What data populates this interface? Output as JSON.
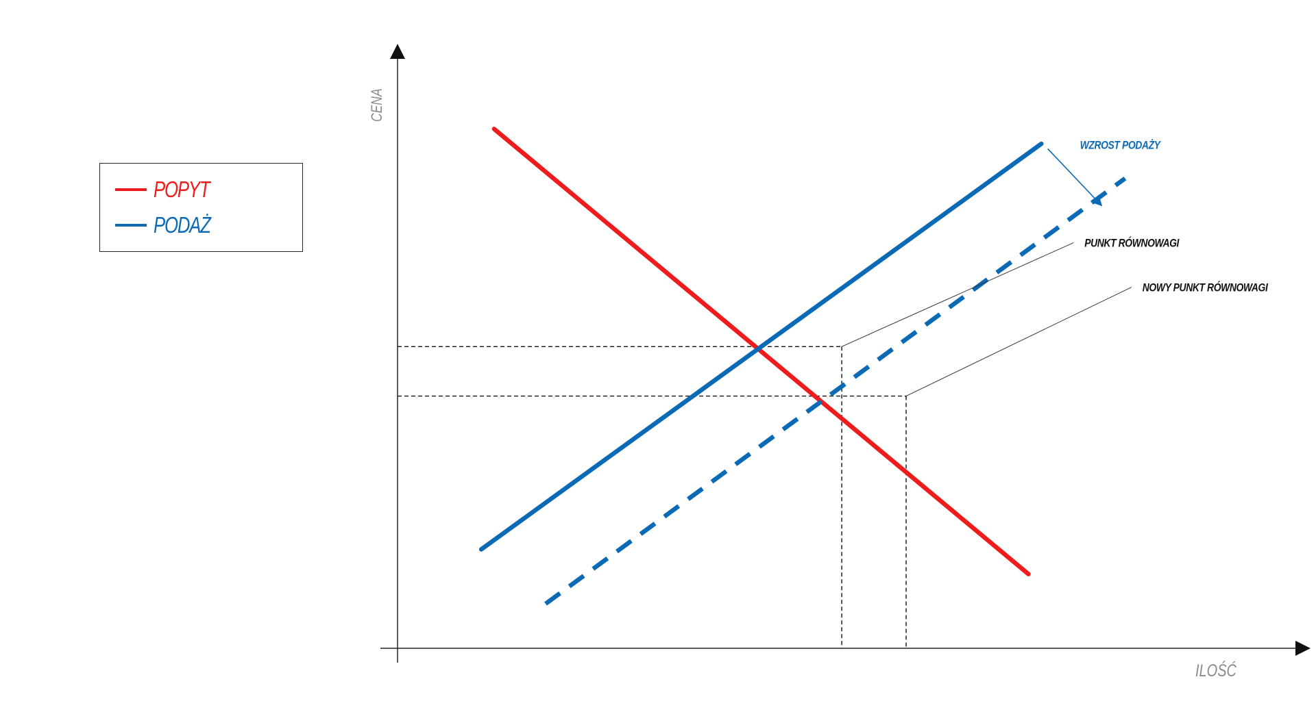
{
  "chart_data": {
    "type": "line",
    "title": "",
    "xlabel": "ILOŚĆ",
    "ylabel": "CENA",
    "grid": false,
    "legend_position": "left",
    "xlim": [
      0,
      14
    ],
    "ylim": [
      0,
      12
    ],
    "series": [
      {
        "name": "POPYT",
        "color": "#ee1c1c",
        "style": "solid",
        "points": [
          [
            1.5,
            10.5
          ],
          [
            9.8,
            1.5
          ]
        ]
      },
      {
        "name": "PODAŻ",
        "color": "#0a6ab6",
        "style": "solid",
        "points": [
          [
            1.3,
            2.0
          ],
          [
            10.0,
            10.2
          ]
        ]
      },
      {
        "name": "",
        "color": "#0a6ab6",
        "style": "dashed",
        "points": [
          [
            2.3,
            0.9
          ],
          [
            11.3,
            9.5
          ]
        ]
      }
    ],
    "equilibria": [
      {
        "label": "PUNKT RÓWNOWAGI",
        "x": 6.9,
        "y": 6.1,
        "label_at": [
          10.5,
          8.2
        ]
      },
      {
        "label": "NOWY PUNKT RÓWNOWAGI",
        "x": 7.9,
        "y": 5.1,
        "label_at": [
          11.4,
          7.3
        ]
      }
    ],
    "shift_arrow": {
      "label": "WZROST PODAŻY",
      "color": "#0a6ab6",
      "from": [
        10.1,
        10.1
      ],
      "to": [
        10.9,
        9.0
      ],
      "label_at": [
        10.6,
        10.1
      ]
    }
  },
  "legend": {
    "items": [
      {
        "label": "POPYT",
        "color": "#ee1c1c"
      },
      {
        "label": "PODAŻ",
        "color": "#0a6ab6"
      }
    ]
  }
}
